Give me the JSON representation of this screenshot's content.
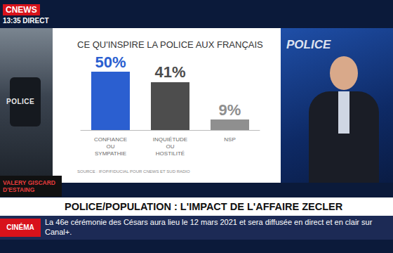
{
  "chart_data": {
    "type": "bar",
    "title": "CE QU'INSPIRE LA POLICE AUX FRANÇAIS",
    "source": "SOURCE : IFOP/FIDUCIAL POUR CNEWS ET SUD RADIO",
    "categories": [
      "CONFIANCE OU SYMPATHIE",
      "INQUIÉTUDE OU HOSTILITÉ",
      "NSP"
    ],
    "values": [
      50,
      41,
      9
    ],
    "value_labels": [
      "50%",
      "41%",
      "9%"
    ],
    "colors": [
      "#2b5fd0",
      "#4d4d4d",
      "#8f8f8f"
    ],
    "ylim": [
      0,
      50
    ],
    "tick_labels": "x",
    "data_labels": true,
    "grid": false
  },
  "broadcast": {
    "channel": "CNEWS",
    "time": "13:35",
    "live": "DIRECT",
    "photo_label": "POLICE",
    "backdrop_label": "POLICE",
    "guest": "VALERY GISCARD D'ESTAING",
    "headline": "POLICE/POPULATION : L'IMPACT DE L'AFFAIRE ZECLER",
    "ticker_category": "CINÉMA",
    "ticker": "La 46e cérémonie des Césars aura lieu le 12 mars 2021 et sera diffusée en direct et en clair sur Canal+."
  }
}
